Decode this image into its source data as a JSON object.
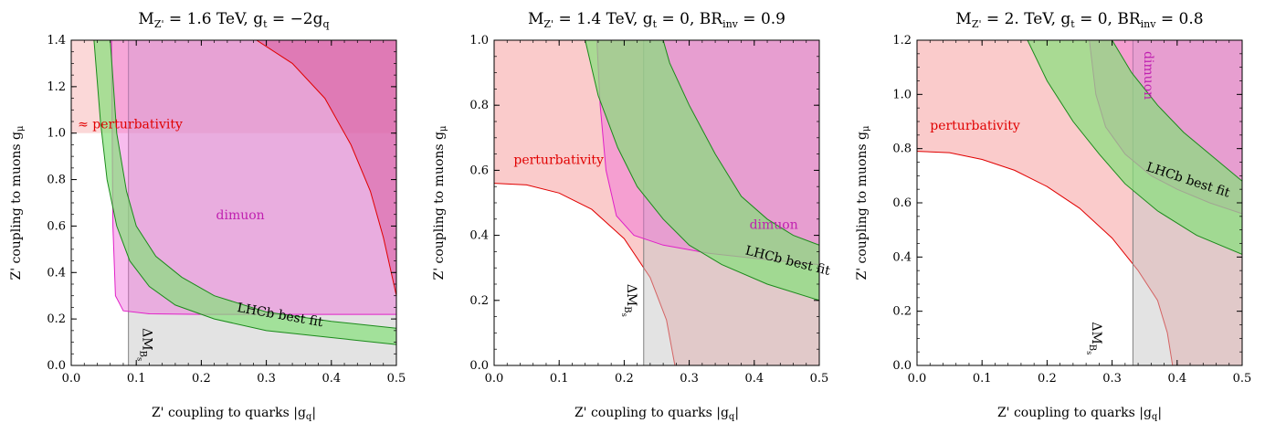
{
  "colors": {
    "green": "#86e07a",
    "green_edge": "#1b8a1b",
    "magenta": "#f06ad9",
    "magenta_edge": "#e020c8",
    "red": "#f7a8a8",
    "red_edge": "#e00000",
    "grey": "#c8c8c8",
    "grey_edge": "#808080",
    "purple_text": "#c020b0",
    "red_text": "#e00000"
  },
  "panels": [
    {
      "title_prefix": "M",
      "title_sub": "Z'",
      "title_rest": " = 1.6 TeV, g",
      "title_sub2": "t",
      "title_rest2": " = −2g",
      "title_sub3": "q",
      "title_rest3": "",
      "xlabel": "Z' coupling to quarks |g",
      "xlabel_sub": "q",
      "xlabel_end": "|",
      "ylabel": "Z' coupling to muons g",
      "ylabel_sub": "μ",
      "labels": {
        "perturbativity": "≈ perturbativity",
        "dimuon": "dimuon",
        "lhcb": "LHCb best fit",
        "dm": "ΔM",
        "dm_sub": "B",
        "dm_sub2": "s"
      }
    },
    {
      "title_prefix": "M",
      "title_sub": "Z'",
      "title_rest": " = 1.4 TeV, g",
      "title_sub2": "t",
      "title_rest2": " = 0, BR",
      "title_sub3": "inv",
      "title_rest3": " = 0.9",
      "xlabel": "Z' coupling to quarks |g",
      "xlabel_sub": "q",
      "xlabel_end": "|",
      "ylabel": "Z' coupling to muons g",
      "ylabel_sub": "μ",
      "labels": {
        "perturbativity": "perturbativity",
        "dimuon": "dimuon",
        "lhcb": "LHCb best fit",
        "dm": "ΔM",
        "dm_sub": "B",
        "dm_sub2": "s"
      }
    },
    {
      "title_prefix": "M",
      "title_sub": "Z'",
      "title_rest": " = 2. TeV, g",
      "title_sub2": "t",
      "title_rest2": " = 0, BR",
      "title_sub3": "inv",
      "title_rest3": " = 0.8",
      "xlabel": "Z' coupling to quarks |g",
      "xlabel_sub": "q",
      "xlabel_end": "|",
      "ylabel": "Z' coupling to muons g",
      "ylabel_sub": "μ",
      "labels": {
        "perturbativity": "perturbativity",
        "dimuon": "dimuon",
        "lhcb": "LHCb best fit",
        "dm": "ΔM",
        "dm_sub": "B",
        "dm_sub2": "s"
      }
    }
  ],
  "chart_data": [
    {
      "type": "area",
      "title": "MZ' = 1.6 TeV, gt = −2gq",
      "xlabel": "Z' coupling to quarks |gq|",
      "ylabel": "Z' coupling to muons gμ",
      "xlim": [
        0,
        0.5
      ],
      "ylim": [
        0,
        1.4
      ],
      "xticks": [
        0.0,
        0.1,
        0.2,
        0.3,
        0.4,
        0.5
      ],
      "yticks": [
        0.0,
        0.2,
        0.4,
        0.6,
        0.8,
        1.0,
        1.2,
        1.4
      ],
      "regions": {
        "perturbativity": {
          "y_min": 1.0
        },
        "dm_bs": {
          "x_min": 0.088
        },
        "dimuon_boundary": [
          [
            0.062,
            1.4
          ],
          [
            0.064,
            0.6
          ],
          [
            0.068,
            0.3
          ],
          [
            0.08,
            0.235
          ],
          [
            0.12,
            0.222
          ],
          [
            0.2,
            0.22
          ],
          [
            0.3,
            0.22
          ],
          [
            0.4,
            0.22
          ],
          [
            0.5,
            0.22
          ]
        ],
        "magenta_dark_boundary": [
          [
            0.285,
            1.4
          ],
          [
            0.34,
            1.3
          ],
          [
            0.39,
            1.15
          ],
          [
            0.43,
            0.95
          ],
          [
            0.46,
            0.75
          ],
          [
            0.48,
            0.55
          ],
          [
            0.5,
            0.3
          ]
        ],
        "lhcb_upper": [
          [
            0.06,
            1.4
          ],
          [
            0.07,
            1.0
          ],
          [
            0.085,
            0.75
          ],
          [
            0.1,
            0.6
          ],
          [
            0.13,
            0.47
          ],
          [
            0.17,
            0.38
          ],
          [
            0.22,
            0.3
          ],
          [
            0.3,
            0.23
          ],
          [
            0.4,
            0.19
          ],
          [
            0.5,
            0.16
          ]
        ],
        "lhcb_lower": [
          [
            0.035,
            1.4
          ],
          [
            0.045,
            1.05
          ],
          [
            0.055,
            0.8
          ],
          [
            0.07,
            0.6
          ],
          [
            0.09,
            0.45
          ],
          [
            0.12,
            0.34
          ],
          [
            0.16,
            0.26
          ],
          [
            0.22,
            0.2
          ],
          [
            0.3,
            0.15
          ],
          [
            0.4,
            0.12
          ],
          [
            0.5,
            0.09
          ]
        ]
      }
    },
    {
      "type": "area",
      "title": "MZ' = 1.4 TeV, gt = 0, BRinv = 0.9",
      "xlabel": "Z' coupling to quarks |gq|",
      "ylabel": "Z' coupling to muons gμ",
      "xlim": [
        0,
        0.5
      ],
      "ylim": [
        0,
        1.0
      ],
      "xticks": [
        0.0,
        0.1,
        0.2,
        0.3,
        0.4,
        0.5
      ],
      "yticks": [
        0.0,
        0.2,
        0.4,
        0.6,
        0.8,
        1.0
      ],
      "regions": {
        "perturbativity_boundary": [
          [
            0.0,
            0.56
          ],
          [
            0.05,
            0.555
          ],
          [
            0.1,
            0.53
          ],
          [
            0.15,
            0.48
          ],
          [
            0.2,
            0.39
          ],
          [
            0.24,
            0.27
          ],
          [
            0.265,
            0.14
          ],
          [
            0.278,
            0.0
          ]
        ],
        "dm_bs": {
          "x_min": 0.23
        },
        "dimuon_boundary": [
          [
            0.158,
            1.0
          ],
          [
            0.163,
            0.8
          ],
          [
            0.172,
            0.6
          ],
          [
            0.188,
            0.46
          ],
          [
            0.215,
            0.4
          ],
          [
            0.26,
            0.37
          ],
          [
            0.33,
            0.345
          ],
          [
            0.42,
            0.325
          ],
          [
            0.5,
            0.31
          ]
        ],
        "lhcb_upper": [
          [
            0.26,
            1.0
          ],
          [
            0.27,
            0.93
          ],
          [
            0.3,
            0.8
          ],
          [
            0.34,
            0.65
          ],
          [
            0.38,
            0.52
          ],
          [
            0.42,
            0.45
          ],
          [
            0.46,
            0.4
          ],
          [
            0.5,
            0.37
          ]
        ],
        "lhcb_lower": [
          [
            0.14,
            1.0
          ],
          [
            0.16,
            0.83
          ],
          [
            0.19,
            0.67
          ],
          [
            0.22,
            0.55
          ],
          [
            0.26,
            0.45
          ],
          [
            0.3,
            0.37
          ],
          [
            0.35,
            0.31
          ],
          [
            0.42,
            0.25
          ],
          [
            0.5,
            0.2
          ]
        ]
      }
    },
    {
      "type": "area",
      "title": "MZ' = 2. TeV, gt = 0, BRinv = 0.8",
      "xlabel": "Z' coupling to quarks |gq|",
      "ylabel": "Z' coupling to muons gμ",
      "xlim": [
        0,
        0.5
      ],
      "ylim": [
        0,
        1.2
      ],
      "xticks": [
        0.0,
        0.1,
        0.2,
        0.3,
        0.4,
        0.5
      ],
      "yticks": [
        0.0,
        0.2,
        0.4,
        0.6,
        0.8,
        1.0,
        1.2
      ],
      "regions": {
        "perturbativity_boundary": [
          [
            0.0,
            0.79
          ],
          [
            0.05,
            0.785
          ],
          [
            0.1,
            0.76
          ],
          [
            0.15,
            0.72
          ],
          [
            0.2,
            0.66
          ],
          [
            0.25,
            0.58
          ],
          [
            0.3,
            0.47
          ],
          [
            0.34,
            0.35
          ],
          [
            0.37,
            0.24
          ],
          [
            0.385,
            0.12
          ],
          [
            0.393,
            0.0
          ]
        ],
        "dm_bs": {
          "x_min": 0.332
        },
        "dimuon_boundary": [
          [
            0.265,
            1.2
          ],
          [
            0.275,
            1.0
          ],
          [
            0.29,
            0.88
          ],
          [
            0.32,
            0.78
          ],
          [
            0.36,
            0.7
          ],
          [
            0.4,
            0.65
          ],
          [
            0.45,
            0.6
          ],
          [
            0.5,
            0.56
          ]
        ],
        "lhcb_upper": [
          [
            0.3,
            1.2
          ],
          [
            0.33,
            1.08
          ],
          [
            0.37,
            0.96
          ],
          [
            0.41,
            0.86
          ],
          [
            0.45,
            0.78
          ],
          [
            0.5,
            0.68
          ]
        ],
        "lhcb_lower": [
          [
            0.17,
            1.2
          ],
          [
            0.2,
            1.05
          ],
          [
            0.24,
            0.9
          ],
          [
            0.28,
            0.78
          ],
          [
            0.32,
            0.67
          ],
          [
            0.37,
            0.57
          ],
          [
            0.43,
            0.48
          ],
          [
            0.5,
            0.41
          ]
        ]
      }
    }
  ]
}
